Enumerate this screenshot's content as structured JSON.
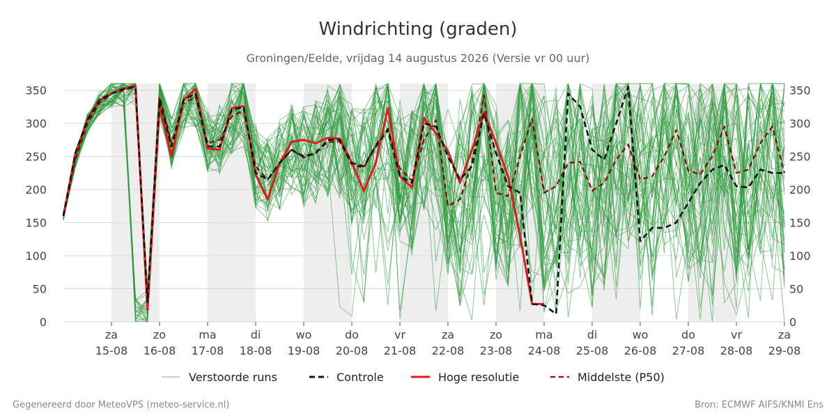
{
  "chart_data": {
    "type": "line",
    "title": "Windrichting (graden)",
    "subtitle": "Groningen/Eelde, vrijdag 14 augustus 2026 (Versie vr 00 uur)",
    "ylim": [
      0,
      360
    ],
    "yticks": [
      0,
      50,
      100,
      150,
      200,
      250,
      300,
      350
    ],
    "xlim": [
      0,
      15
    ],
    "x_ticks": [
      {
        "x": 1,
        "day": "za",
        "date": "15-08"
      },
      {
        "x": 2,
        "day": "zo",
        "date": "16-08"
      },
      {
        "x": 3,
        "day": "ma",
        "date": "17-08"
      },
      {
        "x": 4,
        "day": "di",
        "date": "18-08"
      },
      {
        "x": 5,
        "day": "wo",
        "date": "19-08"
      },
      {
        "x": 6,
        "day": "do",
        "date": "20-08"
      },
      {
        "x": 7,
        "day": "vr",
        "date": "21-08"
      },
      {
        "x": 8,
        "day": "za",
        "date": "22-08"
      },
      {
        "x": 9,
        "day": "zo",
        "date": "23-08"
      },
      {
        "x": 10,
        "day": "ma",
        "date": "24-08"
      },
      {
        "x": 11,
        "day": "di",
        "date": "25-08"
      },
      {
        "x": 12,
        "day": "wo",
        "date": "26-08"
      },
      {
        "x": 13,
        "day": "do",
        "date": "27-08"
      },
      {
        "x": 14,
        "day": "vr",
        "date": "28-08"
      },
      {
        "x": 15,
        "day": "za",
        "date": "29-08"
      }
    ],
    "weekend_bands": [
      [
        1,
        2
      ],
      [
        3,
        4
      ],
      [
        5,
        6
      ],
      [
        7,
        8
      ],
      [
        9,
        10
      ],
      [
        11,
        12
      ],
      [
        13,
        14
      ]
    ],
    "grid": true,
    "legend_position": "bottom",
    "series": [
      {
        "name": "Controle",
        "style": "dashed",
        "color": "#111111",
        "points": [
          [
            0,
            160
          ],
          [
            0.25,
            255
          ],
          [
            0.5,
            305
          ],
          [
            0.75,
            335
          ],
          [
            1,
            345
          ],
          [
            1.25,
            352
          ],
          [
            1.5,
            355
          ],
          [
            1.75,
            30
          ],
          [
            2,
            335
          ],
          [
            2.25,
            265
          ],
          [
            2.5,
            335
          ],
          [
            2.75,
            345
          ],
          [
            3,
            265
          ],
          [
            3.25,
            265
          ],
          [
            3.5,
            320
          ],
          [
            3.75,
            325
          ],
          [
            4,
            225
          ],
          [
            4.25,
            215
          ],
          [
            4.5,
            240
          ],
          [
            4.75,
            260
          ],
          [
            5,
            250
          ],
          [
            5.25,
            255
          ],
          [
            5.5,
            275
          ],
          [
            5.75,
            275
          ],
          [
            6,
            240
          ],
          [
            6.25,
            235
          ],
          [
            6.5,
            265
          ],
          [
            6.75,
            290
          ],
          [
            7,
            220
          ],
          [
            7.25,
            210
          ],
          [
            7.5,
            300
          ],
          [
            7.75,
            295
          ],
          [
            8,
            250
          ],
          [
            8.25,
            215
          ],
          [
            8.5,
            235
          ],
          [
            8.75,
            315
          ],
          [
            9,
            255
          ],
          [
            9.25,
            205
          ],
          [
            9.5,
            195
          ],
          [
            9.75,
            27
          ],
          [
            10,
            25
          ],
          [
            10.25,
            12
          ],
          [
            10.5,
            345
          ],
          [
            10.75,
            325
          ],
          [
            11,
            260
          ],
          [
            11.25,
            245
          ],
          [
            11.5,
            300
          ],
          [
            11.75,
            355
          ],
          [
            12,
            122
          ],
          [
            12.25,
            142
          ],
          [
            12.5,
            142
          ],
          [
            12.75,
            150
          ],
          [
            13,
            180
          ],
          [
            13.25,
            210
          ],
          [
            13.5,
            230
          ],
          [
            13.75,
            237
          ],
          [
            14,
            205
          ],
          [
            14.25,
            203
          ],
          [
            14.5,
            230
          ],
          [
            14.75,
            225
          ],
          [
            15,
            225
          ]
        ]
      },
      {
        "name": "Hoge resolutie",
        "style": "solid",
        "color": "#e01b1b",
        "points": [
          [
            0,
            160
          ],
          [
            0.25,
            255
          ],
          [
            0.5,
            305
          ],
          [
            0.75,
            335
          ],
          [
            1,
            345
          ],
          [
            1.25,
            352
          ],
          [
            1.5,
            357
          ],
          [
            1.75,
            18
          ],
          [
            2,
            325
          ],
          [
            2.25,
            250
          ],
          [
            2.5,
            335
          ],
          [
            2.75,
            352
          ],
          [
            3,
            262
          ],
          [
            3.25,
            260
          ],
          [
            3.5,
            323
          ],
          [
            3.75,
            326
          ],
          [
            4,
            222
          ],
          [
            4.25,
            185
          ],
          [
            4.5,
            240
          ],
          [
            4.75,
            272
          ],
          [
            5,
            275
          ],
          [
            5.25,
            270
          ],
          [
            5.5,
            278
          ],
          [
            5.75,
            277
          ],
          [
            6,
            240
          ],
          [
            6.25,
            198
          ],
          [
            6.5,
            240
          ],
          [
            6.75,
            323
          ],
          [
            7,
            220
          ],
          [
            7.25,
            203
          ],
          [
            7.5,
            308
          ],
          [
            7.75,
            285
          ],
          [
            8,
            258
          ],
          [
            8.25,
            210
          ],
          [
            8.5,
            260
          ],
          [
            8.75,
            317
          ],
          [
            9,
            270
          ],
          [
            9.25,
            220
          ],
          [
            9.5,
            130
          ],
          [
            9.75,
            27
          ],
          [
            10,
            27
          ]
        ]
      },
      {
        "name": "Middelste (P50)",
        "style": "dashed",
        "color": "#8b0000",
        "points": [
          [
            0,
            160
          ],
          [
            0.25,
            245
          ],
          [
            0.5,
            300
          ],
          [
            0.75,
            330
          ],
          [
            1,
            345
          ],
          [
            1.25,
            350
          ],
          [
            1.5,
            355
          ],
          [
            1.75,
            22
          ],
          [
            2,
            340
          ],
          [
            2.25,
            270
          ],
          [
            2.5,
            330
          ],
          [
            2.75,
            340
          ],
          [
            3,
            270
          ],
          [
            3.25,
            275
          ],
          [
            3.5,
            310
          ],
          [
            3.75,
            320
          ],
          [
            4,
            235
          ],
          [
            4.25,
            215
          ],
          [
            4.5,
            240
          ],
          [
            4.75,
            260
          ],
          [
            5,
            248
          ],
          [
            5.25,
            255
          ],
          [
            5.5,
            272
          ],
          [
            5.75,
            272
          ],
          [
            6,
            237
          ],
          [
            6.25,
            233
          ],
          [
            6.5,
            268
          ],
          [
            6.75,
            292
          ],
          [
            7,
            232
          ],
          [
            7.25,
            213
          ],
          [
            7.5,
            275
          ],
          [
            7.75,
            305
          ],
          [
            8,
            175
          ],
          [
            8.25,
            185
          ],
          [
            8.5,
            240
          ],
          [
            8.75,
            342
          ],
          [
            9,
            195
          ],
          [
            9.25,
            190
          ],
          [
            9.5,
            250
          ],
          [
            9.75,
            307
          ],
          [
            10,
            195
          ],
          [
            10.25,
            205
          ],
          [
            10.5,
            240
          ],
          [
            10.75,
            242
          ],
          [
            11,
            198
          ],
          [
            11.25,
            210
          ],
          [
            11.5,
            245
          ],
          [
            11.75,
            268
          ],
          [
            12,
            215
          ],
          [
            12.25,
            220
          ],
          [
            12.5,
            250
          ],
          [
            12.75,
            290
          ],
          [
            13,
            228
          ],
          [
            13.25,
            223
          ],
          [
            13.5,
            250
          ],
          [
            13.75,
            295
          ],
          [
            14,
            225
          ],
          [
            14.25,
            230
          ],
          [
            14.5,
            270
          ],
          [
            14.75,
            295
          ],
          [
            15,
            225
          ]
        ]
      },
      {
        "name": "Verstoorde runs",
        "style": "ensemble",
        "color": "#2e9a3e",
        "members": 50,
        "seed": 20260814,
        "step": 0.25
      }
    ]
  },
  "legend": [
    {
      "key": "ensemble",
      "label": "Verstoorde runs"
    },
    {
      "key": "control",
      "label": "Controle"
    },
    {
      "key": "hires",
      "label": "Hoge resolutie"
    },
    {
      "key": "median",
      "label": "Middelste (P50)"
    }
  ],
  "footer": {
    "left": "Gegenereerd door MeteoVPS (meteo-service.nl)",
    "right": "Bron: ECMWF AIFS/KNMI Ens"
  }
}
